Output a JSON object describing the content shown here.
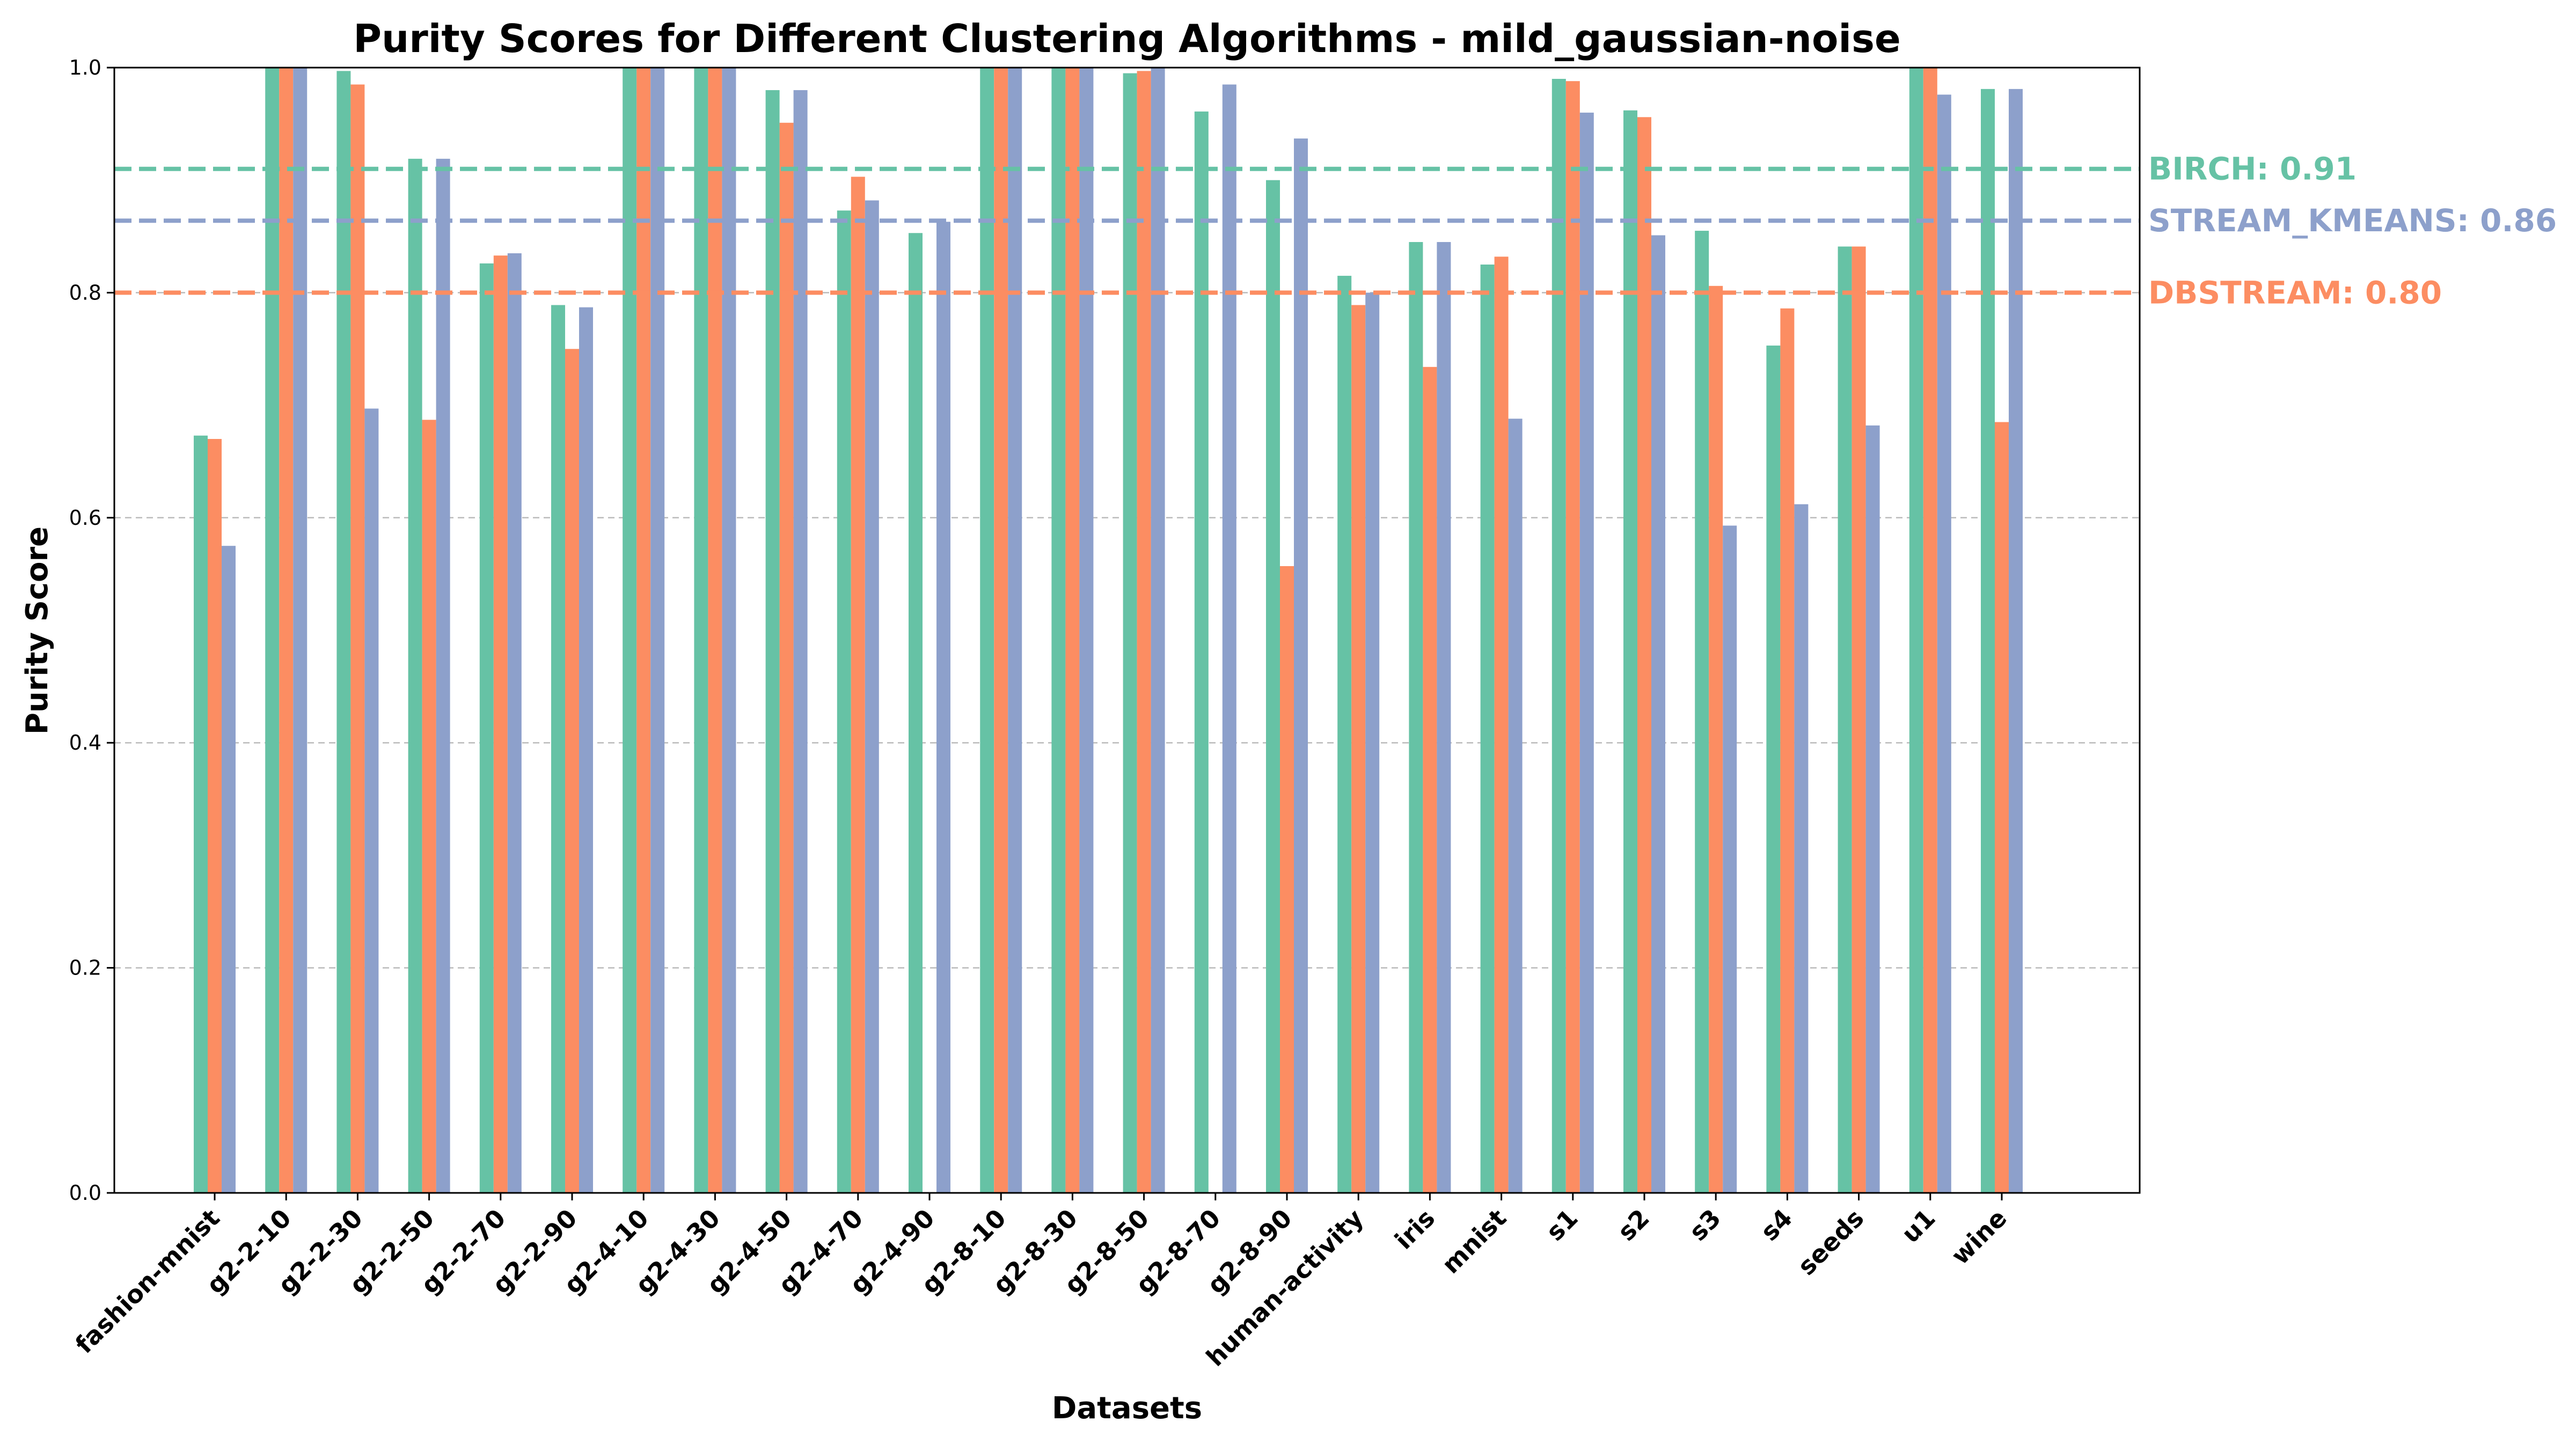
{
  "chart_data": {
    "type": "bar",
    "title": "Purity Scores for Different Clustering Algorithms - mild_gaussian-noise",
    "xlabel": "Datasets",
    "ylabel": "Purity Score",
    "ylim": [
      0,
      1.0
    ],
    "yticks": [
      "0.0",
      "0.2",
      "0.4",
      "0.6",
      "0.8",
      "1.0"
    ],
    "grid": "y-dashed",
    "categories": [
      "fashion-mnist",
      "g2-2-10",
      "g2-2-30",
      "g2-2-50",
      "g2-2-70",
      "g2-2-90",
      "g2-4-10",
      "g2-4-30",
      "g2-4-50",
      "g2-4-70",
      "g2-4-90",
      "g2-8-10",
      "g2-8-30",
      "g2-8-50",
      "g2-8-70",
      "g2-8-90",
      "human-activity",
      "iris",
      "mnist",
      "s1",
      "s2",
      "s3",
      "s4",
      "seeds",
      "u1",
      "wine"
    ],
    "series": [
      {
        "key": "birch",
        "color": "#66c2a5",
        "values": [
          0.673,
          1.0,
          0.997,
          0.919,
          0.826,
          0.789,
          1.0,
          1.0,
          0.98,
          0.873,
          0.853,
          1.0,
          1.0,
          0.995,
          0.961,
          0.9,
          0.815,
          0.845,
          0.825,
          0.99,
          0.962,
          0.855,
          0.753,
          0.841,
          1.0,
          0.981
        ]
      },
      {
        "key": "dbstream",
        "color": "#fc8d62",
        "values": [
          0.67,
          1.0,
          0.985,
          0.687,
          0.833,
          0.75,
          1.0,
          1.0,
          0.951,
          0.903,
          null,
          1.0,
          1.0,
          0.997,
          null,
          0.557,
          0.789,
          0.734,
          0.832,
          0.988,
          0.956,
          0.806,
          0.786,
          0.841,
          1.0,
          0.685
        ]
      },
      {
        "key": "stream_kmeans",
        "color": "#8da0cb",
        "values": [
          0.575,
          1.0,
          0.697,
          0.919,
          0.835,
          0.787,
          1.0,
          1.0,
          0.98,
          0.882,
          0.863,
          1.0,
          1.0,
          1.0,
          0.985,
          0.937,
          0.8,
          0.845,
          0.688,
          0.96,
          0.851,
          0.593,
          0.612,
          0.682,
          0.976,
          0.981
        ]
      }
    ],
    "reference_lines": [
      {
        "label": "BIRCH: 0.91",
        "value": 0.91,
        "color": "#66c2a5"
      },
      {
        "label": "STREAM_KMEANS: 0.86",
        "value": 0.864,
        "color": "#8da0cb"
      },
      {
        "label": "DBSTREAM: 0.80",
        "value": 0.8,
        "color": "#fc8d62"
      }
    ]
  }
}
